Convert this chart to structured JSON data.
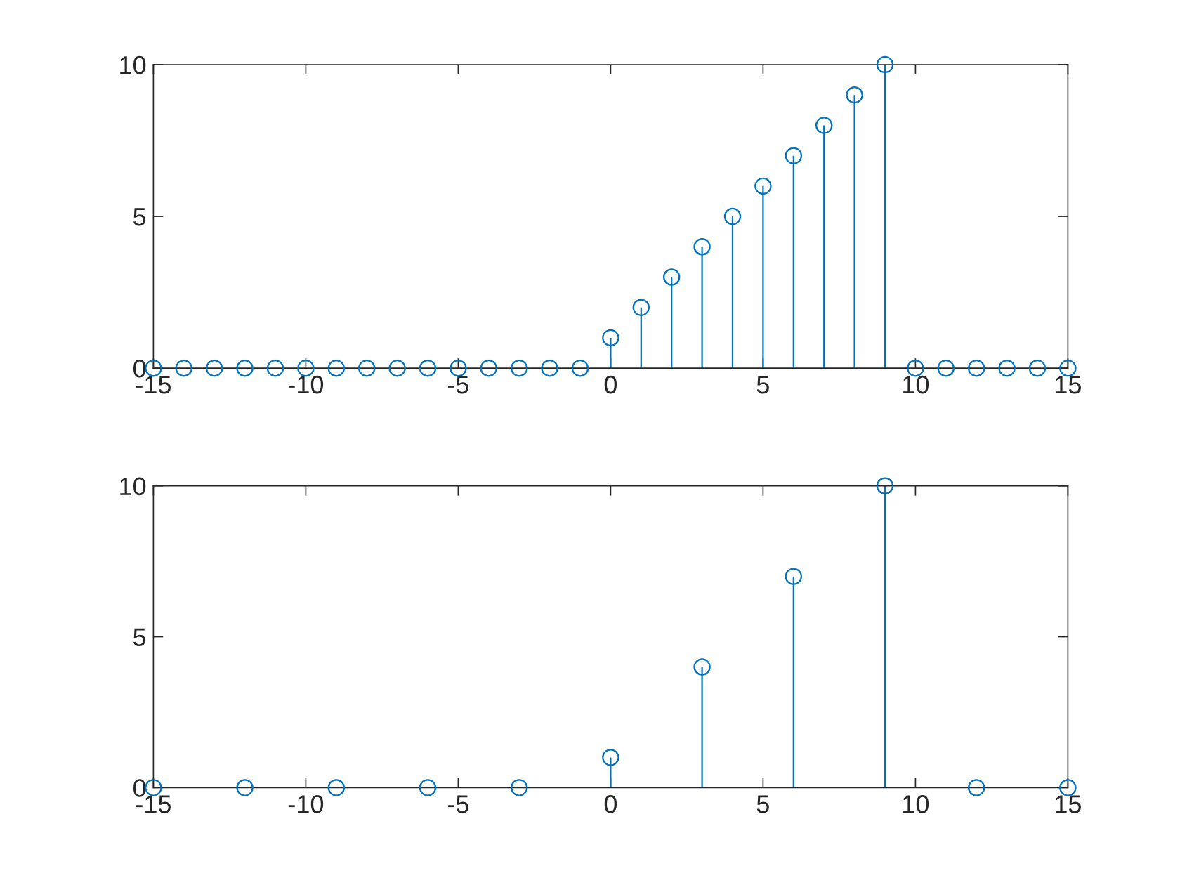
{
  "chart_data": [
    {
      "type": "lollipop",
      "x": [
        -15,
        -14,
        -13,
        -12,
        -11,
        -10,
        -9,
        -8,
        -7,
        -6,
        -5,
        -4,
        -3,
        -2,
        -1,
        0,
        1,
        2,
        3,
        4,
        5,
        6,
        7,
        8,
        9,
        10,
        11,
        12,
        13,
        14,
        15
      ],
      "series": [
        {
          "color": "#0072bd",
          "values": [
            0,
            0,
            0,
            0,
            0,
            0,
            0,
            0,
            0,
            0,
            0,
            0,
            0,
            0,
            0,
            1,
            2,
            3,
            4,
            5,
            6,
            7,
            8,
            9,
            10,
            0,
            0,
            0,
            0,
            0,
            0
          ]
        }
      ],
      "xlim": [
        -15,
        15
      ],
      "xticks": [
        -15,
        -10,
        -5,
        0,
        5,
        10,
        15
      ],
      "ylim": [
        0,
        10
      ],
      "yticks": [
        0,
        5,
        10
      ],
      "marker": "circle",
      "grid": false,
      "legend": false
    },
    {
      "type": "lollipop",
      "x": [
        -15,
        -12,
        -9,
        -6,
        -3,
        0,
        3,
        6,
        9,
        12,
        15
      ],
      "series": [
        {
          "color": "#0072bd",
          "values": [
            0,
            0,
            0,
            0,
            0,
            1,
            4,
            7,
            10,
            0,
            0
          ]
        }
      ],
      "xlim": [
        -15,
        15
      ],
      "xticks": [
        -15,
        -10,
        -5,
        0,
        5,
        10,
        15
      ],
      "ylim": [
        0,
        10
      ],
      "yticks": [
        0,
        5,
        10
      ],
      "marker": "circle",
      "grid": false,
      "legend": false
    }
  ]
}
